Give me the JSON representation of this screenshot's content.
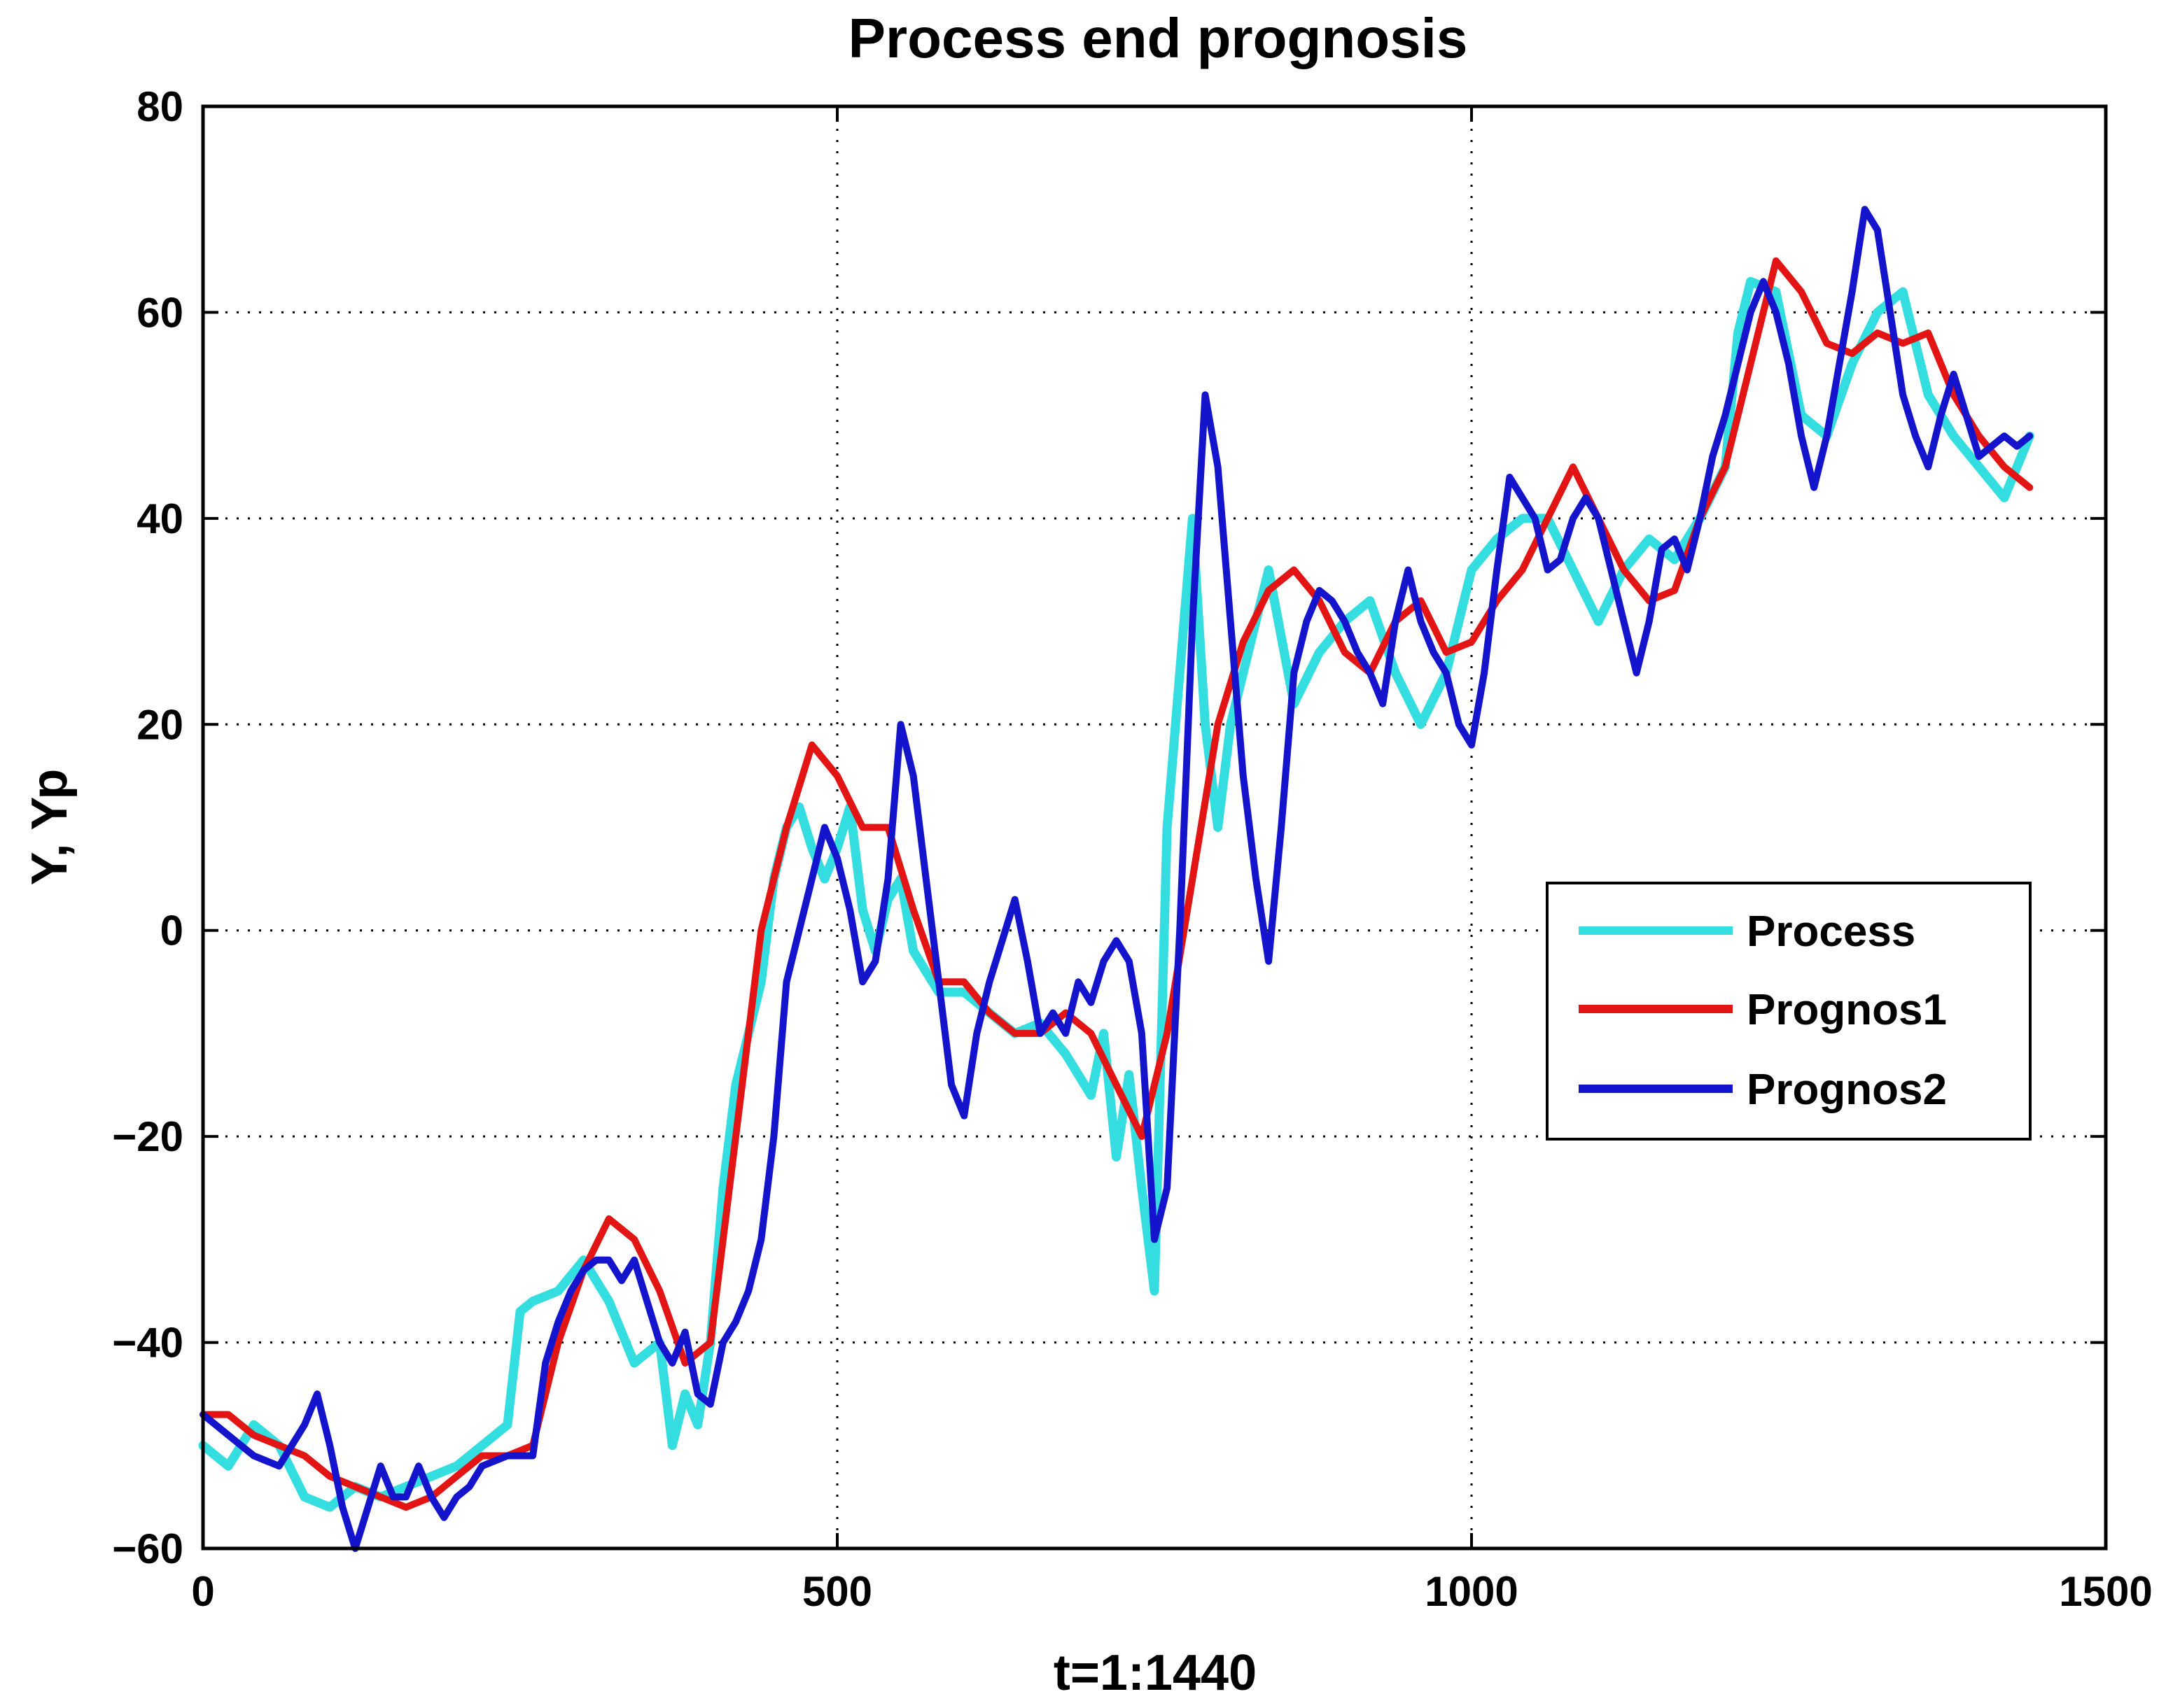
{
  "chart_data": {
    "type": "line",
    "title": "Process end prognosis",
    "xlabel": "t=1:1440",
    "ylabel": "Y,  Yp",
    "xlim": [
      0,
      1500
    ],
    "ylim": [
      -60,
      80
    ],
    "xticks": [
      0,
      500,
      1000,
      1500
    ],
    "yticks": [
      -60,
      -40,
      -20,
      0,
      20,
      40,
      60,
      80
    ],
    "xtick_labels": [
      "0",
      "500",
      "1000",
      "1500"
    ],
    "ytick_labels": [
      "−60",
      "−40",
      "−20",
      "0",
      "20",
      "40",
      "60",
      "80"
    ],
    "grid": true,
    "legend_position": "center-right",
    "series": [
      {
        "name": "Process",
        "color": "#33dde0",
        "x": [
          0,
          20,
          40,
          60,
          80,
          100,
          120,
          140,
          160,
          180,
          200,
          220,
          240,
          250,
          260,
          280,
          300,
          320,
          340,
          360,
          370,
          380,
          390,
          400,
          410,
          420,
          430,
          440,
          450,
          460,
          470,
          480,
          490,
          500,
          510,
          520,
          530,
          540,
          550,
          560,
          570,
          580,
          590,
          600,
          620,
          640,
          660,
          680,
          700,
          710,
          720,
          730,
          740,
          750,
          760,
          770,
          780,
          790,
          800,
          810,
          820,
          830,
          840,
          860,
          880,
          900,
          920,
          940,
          960,
          980,
          1000,
          1020,
          1040,
          1060,
          1080,
          1100,
          1120,
          1140,
          1160,
          1180,
          1200,
          1210,
          1220,
          1240,
          1260,
          1280,
          1300,
          1320,
          1340,
          1360,
          1380,
          1400,
          1420,
          1440
        ],
        "values": [
          -50,
          -52,
          -48,
          -50,
          -55,
          -56,
          -54,
          -55,
          -54,
          -53,
          -52,
          -50,
          -48,
          -37,
          -36,
          -35,
          -32,
          -36,
          -42,
          -40,
          -50,
          -45,
          -48,
          -40,
          -25,
          -15,
          -10,
          -5,
          5,
          10,
          12,
          8,
          5,
          8,
          12,
          2,
          -2,
          3,
          5,
          -2,
          -4,
          -6,
          -6,
          -6,
          -8,
          -10,
          -9,
          -12,
          -16,
          -10,
          -22,
          -14,
          -25,
          -35,
          10,
          25,
          40,
          20,
          10,
          20,
          25,
          30,
          35,
          22,
          27,
          30,
          32,
          25,
          20,
          25,
          35,
          38,
          40,
          40,
          35,
          30,
          35,
          38,
          36,
          40,
          45,
          58,
          63,
          62,
          50,
          48,
          55,
          60,
          62,
          52,
          48,
          45,
          42,
          48
        ]
      },
      {
        "name": "Prognos1",
        "color": "#e31414",
        "x": [
          0,
          20,
          40,
          60,
          80,
          100,
          120,
          140,
          160,
          180,
          200,
          220,
          240,
          260,
          280,
          300,
          320,
          340,
          360,
          380,
          400,
          420,
          440,
          460,
          480,
          500,
          520,
          540,
          560,
          580,
          600,
          620,
          640,
          660,
          680,
          700,
          720,
          740,
          760,
          780,
          800,
          820,
          840,
          860,
          880,
          900,
          920,
          940,
          960,
          980,
          1000,
          1020,
          1040,
          1060,
          1080,
          1100,
          1120,
          1140,
          1160,
          1180,
          1200,
          1220,
          1240,
          1260,
          1280,
          1300,
          1320,
          1340,
          1360,
          1380,
          1400,
          1420,
          1440
        ],
        "values": [
          -47,
          -47,
          -49,
          -50,
          -51,
          -53,
          -54,
          -55,
          -56,
          -55,
          -53,
          -51,
          -51,
          -50,
          -40,
          -33,
          -28,
          -30,
          -35,
          -42,
          -40,
          -20,
          0,
          10,
          18,
          15,
          10,
          10,
          2,
          -5,
          -5,
          -8,
          -10,
          -10,
          -8,
          -10,
          -15,
          -20,
          -10,
          5,
          20,
          28,
          33,
          35,
          32,
          27,
          25,
          30,
          32,
          27,
          28,
          32,
          35,
          40,
          45,
          40,
          35,
          32,
          33,
          40,
          45,
          55,
          65,
          62,
          57,
          56,
          58,
          57,
          58,
          52,
          48,
          45,
          43
        ]
      },
      {
        "name": "Prognos2",
        "color": "#1414cc",
        "x": [
          0,
          20,
          40,
          60,
          70,
          80,
          90,
          100,
          110,
          120,
          130,
          140,
          150,
          160,
          170,
          180,
          190,
          200,
          210,
          220,
          240,
          250,
          260,
          270,
          280,
          290,
          300,
          310,
          320,
          330,
          340,
          350,
          360,
          370,
          380,
          390,
          400,
          410,
          420,
          430,
          440,
          450,
          460,
          470,
          480,
          490,
          500,
          510,
          520,
          530,
          540,
          550,
          560,
          570,
          580,
          590,
          600,
          610,
          620,
          630,
          640,
          650,
          660,
          670,
          680,
          690,
          700,
          710,
          720,
          730,
          740,
          750,
          760,
          770,
          780,
          790,
          800,
          810,
          820,
          830,
          840,
          850,
          860,
          870,
          880,
          890,
          900,
          910,
          920,
          930,
          940,
          950,
          960,
          970,
          980,
          990,
          1000,
          1010,
          1020,
          1030,
          1040,
          1050,
          1060,
          1070,
          1080,
          1090,
          1100,
          1110,
          1120,
          1130,
          1140,
          1150,
          1160,
          1170,
          1180,
          1190,
          1200,
          1210,
          1220,
          1230,
          1240,
          1250,
          1260,
          1270,
          1280,
          1290,
          1300,
          1310,
          1320,
          1330,
          1340,
          1350,
          1360,
          1370,
          1380,
          1390,
          1400,
          1410,
          1420,
          1430,
          1440
        ],
        "values": [
          -47,
          -49,
          -51,
          -52,
          -50,
          -48,
          -45,
          -50,
          -56,
          -60,
          -56,
          -52,
          -55,
          -55,
          -52,
          -55,
          -57,
          -55,
          -54,
          -52,
          -51,
          -51,
          -51,
          -42,
          -38,
          -35,
          -33,
          -32,
          -32,
          -34,
          -32,
          -36,
          -40,
          -42,
          -39,
          -45,
          -46,
          -40,
          -38,
          -35,
          -30,
          -20,
          -5,
          0,
          5,
          10,
          7,
          2,
          -5,
          -3,
          5,
          20,
          15,
          5,
          -5,
          -15,
          -18,
          -10,
          -5,
          -1,
          3,
          -3,
          -10,
          -8,
          -10,
          -5,
          -7,
          -3,
          -1,
          -3,
          -10,
          -30,
          -25,
          0,
          30,
          52,
          45,
          30,
          15,
          5,
          -3,
          10,
          25,
          30,
          33,
          32,
          30,
          27,
          25,
          22,
          30,
          35,
          30,
          27,
          25,
          20,
          18,
          25,
          35,
          44,
          42,
          40,
          35,
          36,
          40,
          42,
          40,
          35,
          30,
          25,
          30,
          37,
          38,
          35,
          40,
          46,
          50,
          55,
          60,
          63,
          60,
          55,
          48,
          43,
          48,
          55,
          62,
          70,
          68,
          60,
          52,
          48,
          45,
          50,
          54,
          50,
          46,
          47,
          48,
          47,
          48
        ]
      }
    ]
  }
}
